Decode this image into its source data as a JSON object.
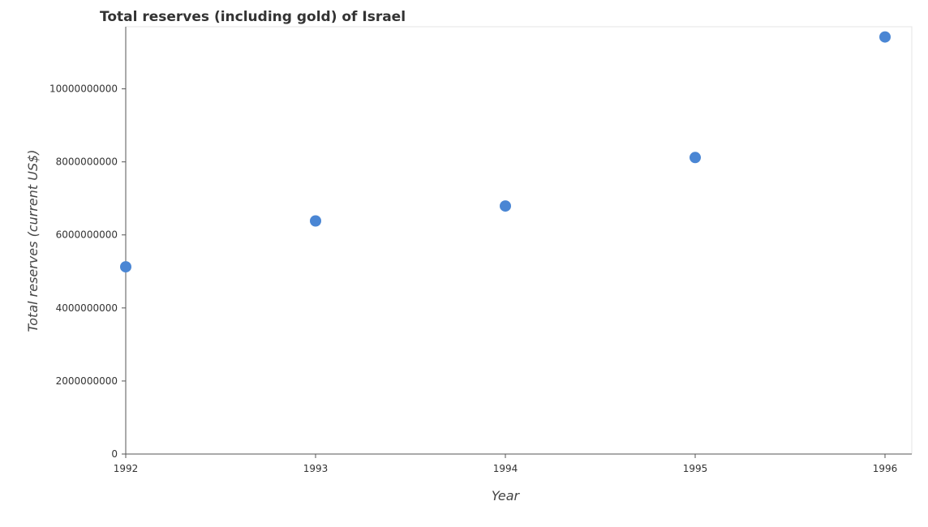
{
  "chart_data": {
    "type": "scatter",
    "title": "Total reserves (including gold) of Israel",
    "xlabel": "Year",
    "ylabel": "Total reserves (current US$)",
    "categories": [
      "1992",
      "1993",
      "1994",
      "1995",
      "1996"
    ],
    "values": [
      5127000000,
      6383000000,
      6792000000,
      8119000000,
      11420000000
    ],
    "yticks": [
      0,
      2000000000,
      4000000000,
      6000000000,
      8000000000,
      10000000000
    ],
    "ytick_labels": [
      "0",
      "2000000000",
      "4000000000",
      "6000000000",
      "8000000000",
      "10000000000"
    ],
    "ylim": [
      0,
      11700000000
    ],
    "grid": false,
    "point_color": "#4a86d4"
  }
}
